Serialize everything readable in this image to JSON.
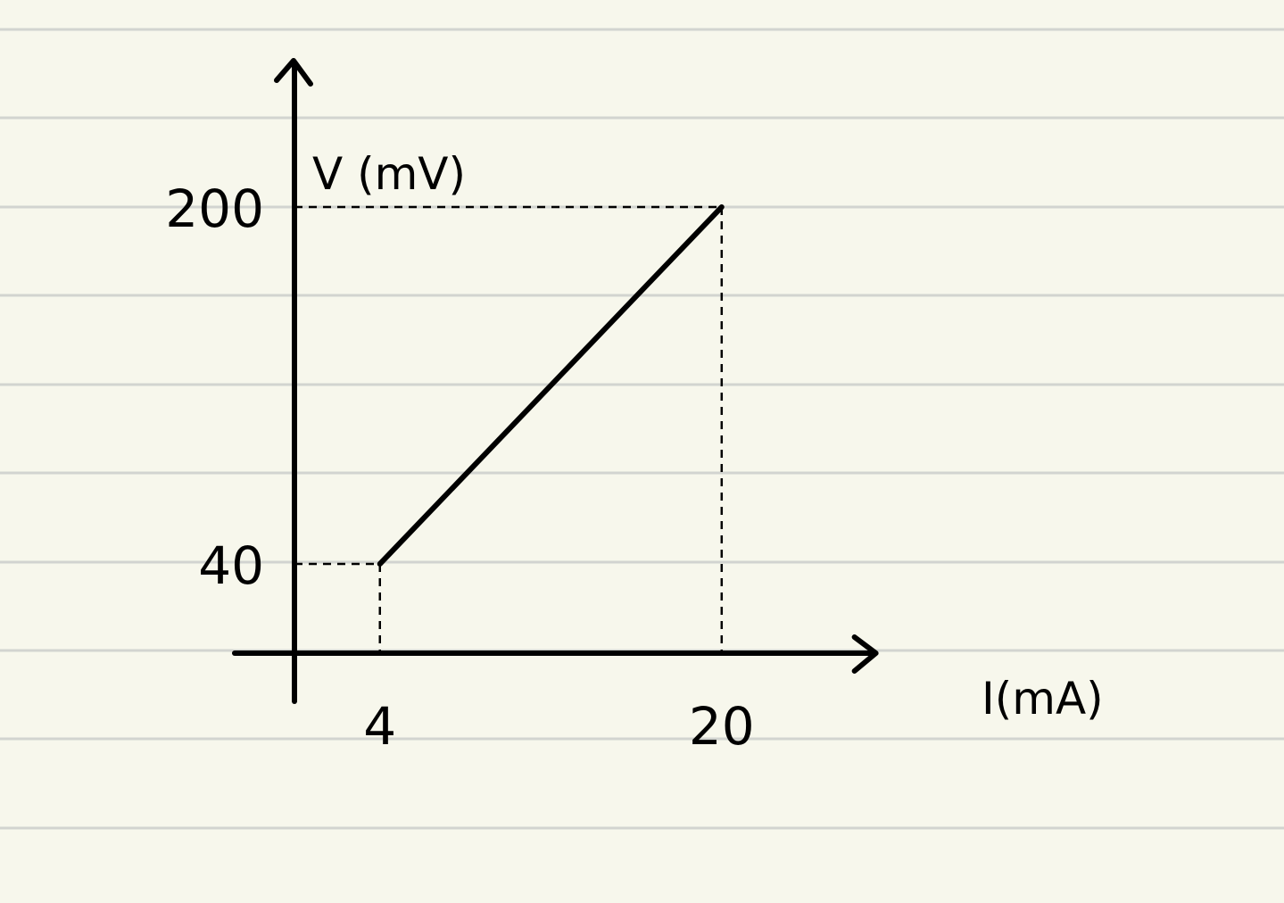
{
  "chart_data": {
    "type": "line",
    "title": "",
    "xlabel": "I(mA)",
    "ylabel": "V (mV)",
    "series": [
      {
        "x": [
          4,
          20
        ],
        "y": [
          40,
          200
        ]
      }
    ],
    "x_tick_labels": [
      "4",
      "20"
    ],
    "y_tick_labels": [
      "40",
      "200"
    ],
    "xlim": [
      -2.8,
      26.3
    ],
    "ylim": [
      -4,
      260
    ],
    "guides": "dashed projections from endpoints to both axes",
    "grid": false,
    "legend": "none",
    "colors": {
      "paper": "#f7f7ec",
      "ruled_lines": "#d2d4d0",
      "ink": "#000000"
    }
  }
}
